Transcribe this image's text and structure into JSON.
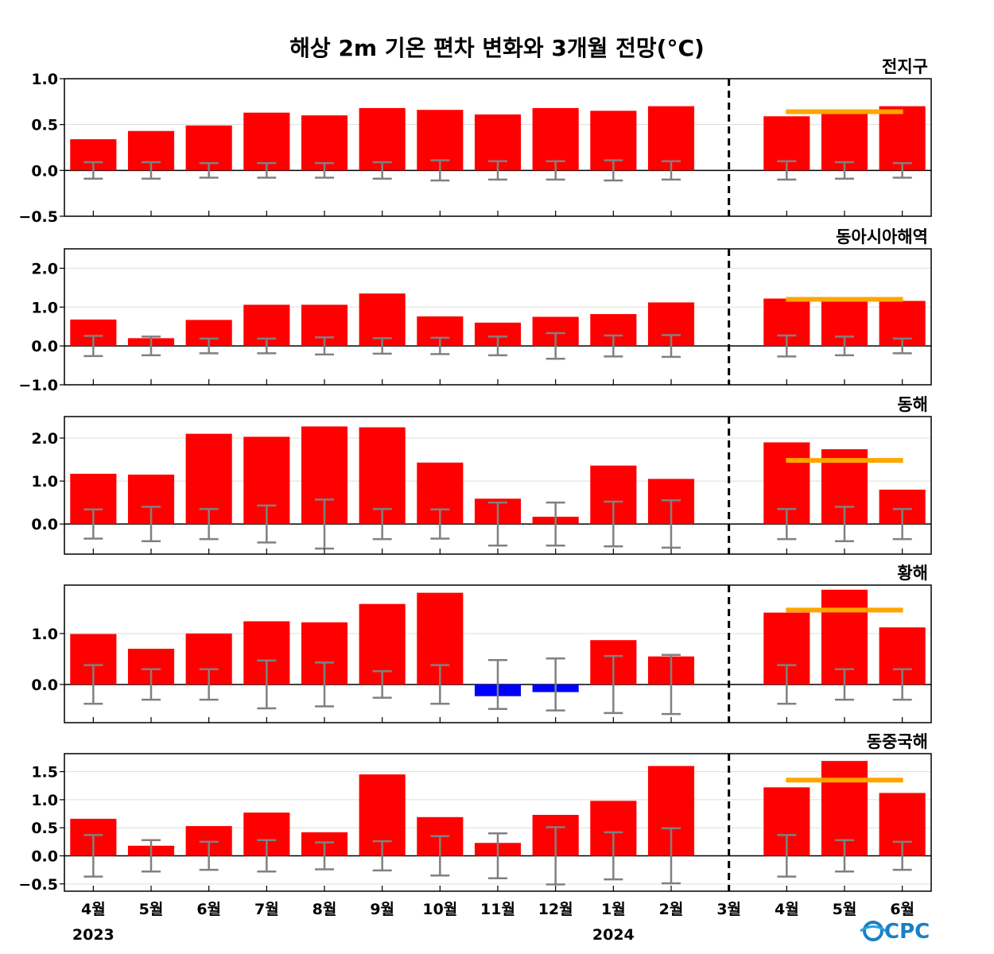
{
  "chart_data": {
    "type": "bar",
    "title": "해상 2m 기온 편차 변화와 3개월 전망(°C)",
    "months": [
      "4월",
      "5월",
      "6월",
      "7월",
      "8월",
      "9월",
      "10월",
      "11월",
      "12월",
      "1월",
      "2월",
      "3월",
      "4월",
      "5월",
      "6월"
    ],
    "years": [
      {
        "label": "2023",
        "month_index": 0
      },
      {
        "label": "2024",
        "month_index": 9
      }
    ],
    "forecast_divider_after_index": 11,
    "logo": "CPC",
    "colors": {
      "positive": "#ff0000",
      "negative": "#0000ff",
      "error_bar": "#808080",
      "forecast_mean": "#ffa500",
      "divider": "#000000"
    },
    "panels": [
      {
        "region": "전지구",
        "ylim": [
          -0.5,
          1.0
        ],
        "yticks": [
          1.0,
          0.5,
          0.0,
          -0.5
        ],
        "tick_labels": [
          "1.0",
          "0.5",
          "0.0",
          "−0.5"
        ],
        "values": [
          0.34,
          0.43,
          0.49,
          0.63,
          0.6,
          0.68,
          0.66,
          0.61,
          0.68,
          0.65,
          0.7,
          null,
          0.59,
          0.65,
          0.7
        ],
        "error_bars": [
          0.09,
          0.09,
          0.08,
          0.08,
          0.08,
          0.09,
          0.11,
          0.1,
          0.1,
          0.11,
          0.1,
          null,
          0.1,
          0.09,
          0.08
        ],
        "forecast_mean": 0.64
      },
      {
        "region": "동아시아해역",
        "ylim": [
          -1.0,
          2.5
        ],
        "yticks": [
          2.0,
          1.0,
          0.0,
          -1.0
        ],
        "tick_labels": [
          "2.0",
          "1.0",
          "0.0",
          "−1.0"
        ],
        "values": [
          0.68,
          0.2,
          0.67,
          1.06,
          1.06,
          1.35,
          0.76,
          0.6,
          0.75,
          0.82,
          1.12,
          null,
          1.22,
          1.16,
          1.16
        ],
        "error_bars": [
          0.26,
          0.24,
          0.19,
          0.19,
          0.22,
          0.2,
          0.21,
          0.24,
          0.33,
          0.27,
          0.28,
          null,
          0.27,
          0.24,
          0.19
        ],
        "forecast_mean": 1.2
      },
      {
        "region": "동해",
        "ylim": [
          -0.7,
          2.5
        ],
        "yticks": [
          2.0,
          1.0,
          0.0
        ],
        "tick_labels": [
          "2.0",
          "1.0",
          "0.0"
        ],
        "values": [
          1.17,
          1.15,
          2.1,
          2.03,
          2.27,
          2.25,
          1.43,
          0.59,
          0.17,
          1.36,
          1.05,
          null,
          1.9,
          1.74,
          0.8
        ],
        "error_bars": [
          0.34,
          0.4,
          0.35,
          0.43,
          0.57,
          0.35,
          0.34,
          0.5,
          0.5,
          0.52,
          0.55,
          null,
          0.35,
          0.4,
          0.35
        ],
        "forecast_mean": 1.48
      },
      {
        "region": "황해",
        "ylim": [
          -0.75,
          1.95
        ],
        "yticks": [
          1.0,
          0.0
        ],
        "tick_labels": [
          "1.0",
          "0.0"
        ],
        "values": [
          0.99,
          0.7,
          1.0,
          1.24,
          1.22,
          1.58,
          1.8,
          -0.23,
          -0.15,
          0.87,
          0.55,
          null,
          1.41,
          1.86,
          1.12
        ],
        "error_bars": [
          0.38,
          0.3,
          0.3,
          0.47,
          0.43,
          0.26,
          0.38,
          0.48,
          0.51,
          0.56,
          0.58,
          null,
          0.38,
          0.3,
          0.3
        ],
        "forecast_mean": 1.46
      },
      {
        "region": "동중국해",
        "ylim": [
          -0.63,
          1.82
        ],
        "yticks": [
          1.5,
          1.0,
          0.5,
          0.0,
          -0.5
        ],
        "tick_labels": [
          "1.5",
          "1.0",
          "0.5",
          "0.0",
          "−0.5"
        ],
        "values": [
          0.66,
          0.18,
          0.53,
          0.77,
          0.42,
          1.45,
          0.69,
          0.23,
          0.73,
          0.98,
          1.6,
          null,
          1.22,
          1.69,
          1.12
        ],
        "error_bars": [
          0.37,
          0.28,
          0.25,
          0.28,
          0.24,
          0.26,
          0.35,
          0.4,
          0.51,
          0.42,
          0.49,
          null,
          0.37,
          0.28,
          0.25
        ],
        "forecast_mean": 1.35
      }
    ]
  }
}
